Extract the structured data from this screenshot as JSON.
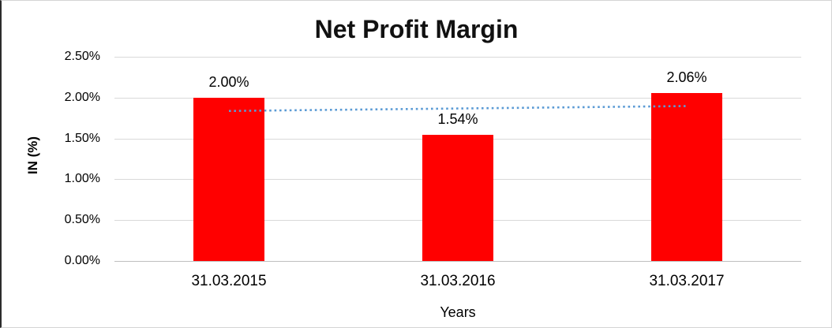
{
  "chart_data": {
    "type": "bar",
    "title": "Net Profit Margin",
    "categories": [
      "31.03.2015",
      "31.03.2016",
      "31.03.2017"
    ],
    "values": [
      2.0,
      1.54,
      2.06
    ],
    "data_labels": [
      "2.00%",
      "1.54%",
      "2.06%"
    ],
    "xlabel": "Years",
    "ylabel": "IN (%)",
    "ylim": [
      0,
      2.5
    ],
    "y_ticks": [
      {
        "value": 0.0,
        "label": "0.00%"
      },
      {
        "value": 0.5,
        "label": "0.50%"
      },
      {
        "value": 1.0,
        "label": "1.00%"
      },
      {
        "value": 1.5,
        "label": "1.50%"
      },
      {
        "value": 2.0,
        "label": "2.00%"
      },
      {
        "value": 2.5,
        "label": "2.50%"
      }
    ],
    "grid": true,
    "legend": "none",
    "bar_color": "#FF0000",
    "gridline_color": "#D9D9D9",
    "axisline_color": "#BFBFBF",
    "trendline": {
      "type": "linear",
      "style": "dotted",
      "color": "#5B9BD5",
      "start_value": 1.8367,
      "end_value": 1.8967
    }
  }
}
